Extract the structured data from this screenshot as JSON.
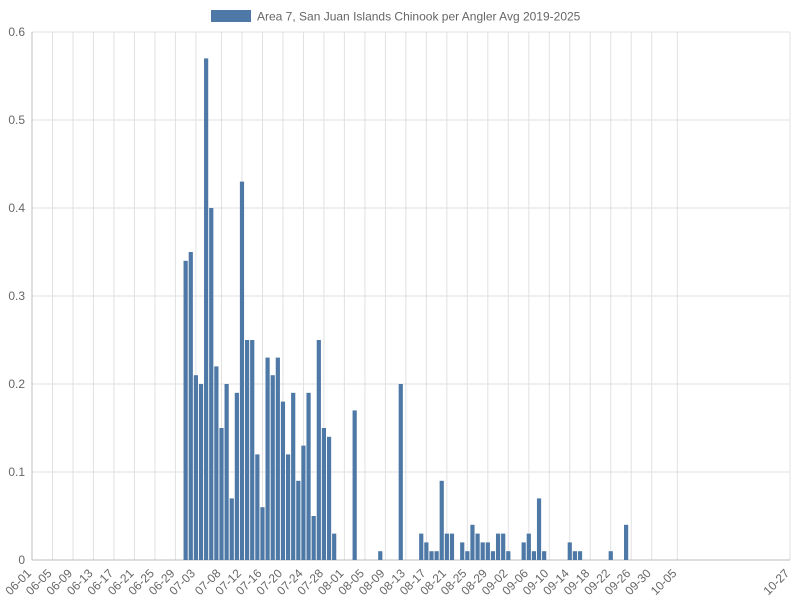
{
  "chart_data": {
    "type": "bar",
    "legend": {
      "label": "Area 7, San Juan Islands Chinook per Angler Avg 2019-2025",
      "placement": "top-center",
      "color": "#4e79a7"
    },
    "series": [
      {
        "name": "Area 7, San Juan Islands Chinook per Angler Avg 2019-2025",
        "color": "#4e79a7",
        "points": [
          [
            "07-01",
            0.34
          ],
          [
            "07-02",
            0.35
          ],
          [
            "07-03",
            0.21
          ],
          [
            "07-04",
            0.2
          ],
          [
            "07-05",
            0.57
          ],
          [
            "07-06",
            0.4
          ],
          [
            "07-07",
            0.22
          ],
          [
            "07-08",
            0.15
          ],
          [
            "07-09",
            0.2
          ],
          [
            "07-10",
            0.07
          ],
          [
            "07-11",
            0.19
          ],
          [
            "07-12",
            0.43
          ],
          [
            "07-13",
            0.25
          ],
          [
            "07-14",
            0.25
          ],
          [
            "07-15",
            0.12
          ],
          [
            "07-16",
            0.06
          ],
          [
            "07-17",
            0.23
          ],
          [
            "07-18",
            0.21
          ],
          [
            "07-19",
            0.23
          ],
          [
            "07-20",
            0.18
          ],
          [
            "07-21",
            0.12
          ],
          [
            "07-22",
            0.19
          ],
          [
            "07-23",
            0.09
          ],
          [
            "07-24",
            0.13
          ],
          [
            "07-25",
            0.19
          ],
          [
            "07-26",
            0.05
          ],
          [
            "07-27",
            0.25
          ],
          [
            "07-28",
            0.15
          ],
          [
            "07-29",
            0.14
          ],
          [
            "07-30",
            0.03
          ],
          [
            "08-03",
            0.17
          ],
          [
            "08-08",
            0.01
          ],
          [
            "08-12",
            0.2
          ],
          [
            "08-16",
            0.03
          ],
          [
            "08-17",
            0.02
          ],
          [
            "08-18",
            0.01
          ],
          [
            "08-19",
            0.01
          ],
          [
            "08-20",
            0.09
          ],
          [
            "08-21",
            0.03
          ],
          [
            "08-22",
            0.03
          ],
          [
            "08-24",
            0.02
          ],
          [
            "08-25",
            0.01
          ],
          [
            "08-26",
            0.04
          ],
          [
            "08-27",
            0.03
          ],
          [
            "08-28",
            0.02
          ],
          [
            "08-29",
            0.02
          ],
          [
            "08-30",
            0.01
          ],
          [
            "08-31",
            0.03
          ],
          [
            "09-01",
            0.03
          ],
          [
            "09-02",
            0.01
          ],
          [
            "09-05",
            0.02
          ],
          [
            "09-06",
            0.03
          ],
          [
            "09-07",
            0.01
          ],
          [
            "09-08",
            0.07
          ],
          [
            "09-09",
            0.01
          ],
          [
            "09-14",
            0.02
          ],
          [
            "09-15",
            0.01
          ],
          [
            "09-16",
            0.01
          ],
          [
            "09-22",
            0.01
          ],
          [
            "09-25",
            0.04
          ]
        ]
      }
    ],
    "x_ticks": [
      "06-01",
      "06-05",
      "06-09",
      "06-13",
      "06-17",
      "06-21",
      "06-25",
      "06-29",
      "07-03",
      "07-08",
      "07-12",
      "07-16",
      "07-20",
      "07-24",
      "07-28",
      "08-01",
      "08-05",
      "08-09",
      "08-13",
      "08-17",
      "08-21",
      "08-25",
      "08-29",
      "09-02",
      "09-06",
      "09-10",
      "09-14",
      "09-18",
      "09-22",
      "09-26",
      "09-30",
      "10-05",
      "10-27"
    ],
    "y_ticks": [
      "0",
      "0.1",
      "0.2",
      "0.3",
      "0.4",
      "0.5",
      "0.6"
    ],
    "ylim": [
      0,
      0.6
    ],
    "x_range": [
      "06-01",
      "10-27"
    ],
    "grid": true,
    "title": "",
    "xlabel": "",
    "ylabel": ""
  }
}
